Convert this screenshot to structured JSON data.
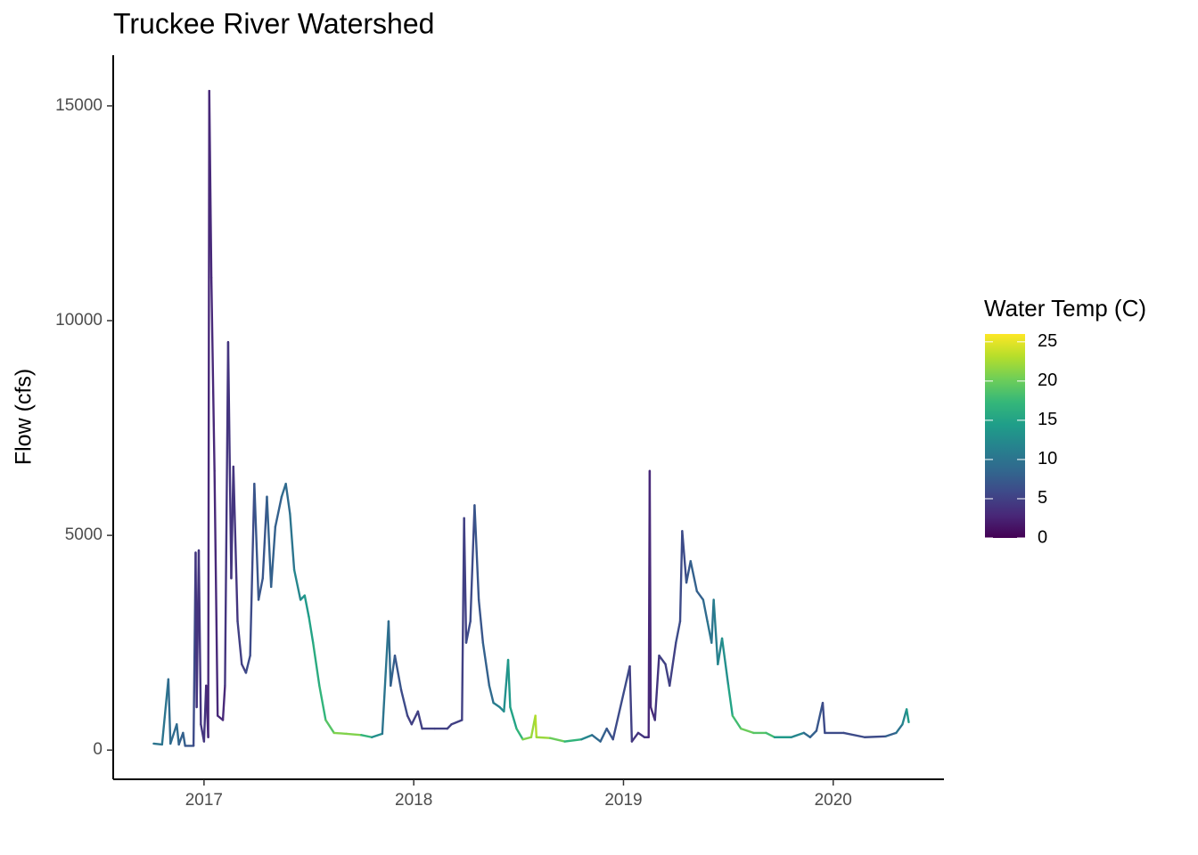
{
  "chart_data": {
    "type": "line",
    "title": "Truckee River Watershed",
    "y_label": "Flow (cfs)",
    "xlim": [
      2016.567,
      2020.528
    ],
    "xticks": [
      2017,
      2018,
      2019,
      2020
    ],
    "ylim": [
      -680,
      16180
    ],
    "yticks": [
      0,
      5000,
      10000,
      15000
    ],
    "color_label": "Water Temp (C)",
    "color_lim": [
      0,
      26
    ],
    "color_ticks": [
      0,
      5,
      10,
      15,
      20,
      25
    ],
    "colormap": [
      "#440154",
      "#482878",
      "#3e4989",
      "#31688e",
      "#26828e",
      "#1f9e89",
      "#35b779",
      "#6ece58",
      "#b5de2b",
      "#fde725"
    ],
    "series": [
      {
        "x": [
          2016.76,
          2016.8,
          2016.83,
          2016.84,
          2016.87,
          2016.88,
          2016.9,
          2016.91,
          2016.95,
          2016.96,
          2016.965,
          2016.975,
          2016.985,
          2017.0,
          2017.01,
          2017.02,
          2017.025,
          2017.035,
          2017.05,
          2017.065,
          2017.09,
          2017.1,
          2017.115,
          2017.13,
          2017.14,
          2017.16,
          2017.18,
          2017.2,
          2017.22,
          2017.24,
          2017.26,
          2017.28,
          2017.3,
          2017.32,
          2017.34,
          2017.37,
          2017.39,
          2017.41,
          2017.43,
          2017.46,
          2017.48,
          2017.5,
          2017.52,
          2017.55,
          2017.58,
          2017.62,
          2017.68,
          2017.75,
          2017.8,
          2017.85,
          2017.88,
          2017.89,
          2017.91,
          2017.94,
          2017.97,
          2017.99,
          2018.02,
          2018.04,
          2018.1,
          2018.16,
          2018.18,
          2018.23,
          2018.24,
          2018.25,
          2018.27,
          2018.29,
          2018.31,
          2018.33,
          2018.36,
          2018.38,
          2018.41,
          2018.43,
          2018.45,
          2018.46,
          2018.49,
          2018.52,
          2018.56,
          2018.58,
          2018.585,
          2018.65,
          2018.72,
          2018.8,
          2018.85,
          2018.89,
          2018.92,
          2018.95,
          2019.03,
          2019.04,
          2019.07,
          2019.1,
          2019.12,
          2019.125,
          2019.13,
          2019.15,
          2019.17,
          2019.2,
          2019.22,
          2019.25,
          2019.27,
          2019.28,
          2019.3,
          2019.32,
          2019.35,
          2019.38,
          2019.4,
          2019.42,
          2019.43,
          2019.45,
          2019.47,
          2019.5,
          2019.52,
          2019.56,
          2019.62,
          2019.68,
          2019.72,
          2019.8,
          2019.86,
          2019.89,
          2019.92,
          2019.95,
          2019.96,
          2020.05,
          2020.15,
          2020.25,
          2020.3,
          2020.33,
          2020.35,
          2020.36
        ],
        "values": [
          150,
          130,
          1650,
          150,
          600,
          130,
          400,
          100,
          100,
          4600,
          1000,
          4650,
          600,
          200,
          1500,
          300,
          15350,
          11000,
          6500,
          800,
          700,
          1500,
          9500,
          4000,
          6600,
          3000,
          2000,
          1800,
          2200,
          6200,
          3500,
          4000,
          5900,
          3800,
          5200,
          5900,
          6200,
          5500,
          4200,
          3500,
          3600,
          3100,
          2500,
          1500,
          700,
          400,
          380,
          350,
          300,
          380,
          3000,
          1500,
          2200,
          1400,
          800,
          600,
          900,
          500,
          500,
          500,
          600,
          700,
          5400,
          2500,
          3000,
          5700,
          3500,
          2500,
          1500,
          1100,
          1000,
          900,
          2100,
          1000,
          500,
          250,
          300,
          800,
          300,
          280,
          200,
          250,
          350,
          200,
          500,
          250,
          1950,
          200,
          400,
          300,
          300,
          6500,
          1000,
          700,
          2200,
          2000,
          1500,
          2500,
          3000,
          5100,
          3900,
          4400,
          3700,
          3500,
          3000,
          2500,
          3500,
          2000,
          2600,
          1500,
          800,
          500,
          400,
          400,
          300,
          300,
          400,
          300,
          450,
          1100,
          400,
          400,
          300,
          320,
          400,
          600,
          950,
          650
        ],
        "temp": [
          10,
          10,
          9,
          9,
          9,
          8,
          8,
          7,
          6,
          4,
          4,
          4,
          4,
          4,
          3,
          3,
          3,
          3,
          3,
          3,
          3,
          4,
          4,
          4,
          4,
          5,
          5,
          6,
          6,
          7,
          7,
          7,
          8,
          8,
          8,
          9,
          9,
          10,
          12,
          13,
          14,
          15,
          16,
          17,
          19,
          21,
          21,
          17,
          13,
          10,
          9,
          8,
          7,
          6,
          5,
          5,
          5,
          5,
          5,
          5,
          5,
          5,
          5,
          6,
          6,
          7,
          7,
          8,
          9,
          11,
          12,
          13,
          14,
          15,
          17,
          21,
          22,
          23,
          22,
          20,
          17,
          12,
          9,
          8,
          7,
          6,
          5,
          4,
          4,
          4,
          3,
          3,
          3,
          4,
          5,
          5,
          5,
          6,
          6,
          6,
          7,
          8,
          8,
          9,
          10,
          10,
          11,
          12,
          13,
          15,
          18,
          20,
          19,
          18,
          14,
          12,
          9,
          8,
          7,
          6,
          6,
          6,
          6,
          8,
          10,
          12,
          14,
          14
        ]
      }
    ]
  }
}
